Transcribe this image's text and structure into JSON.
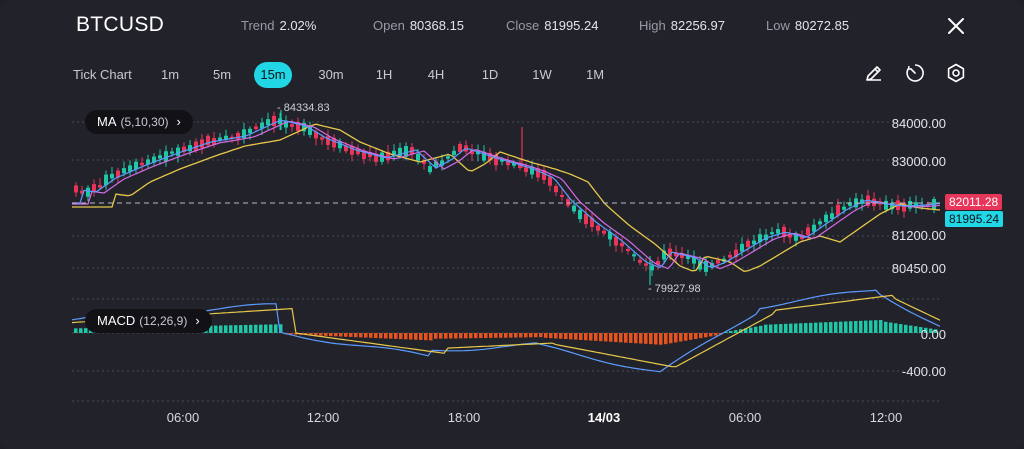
{
  "header": {
    "symbol": "BTCUSD",
    "trend_label": "Trend",
    "trend_value": "2.02%",
    "open_label": "Open",
    "open_value": "80368.15",
    "close_label": "Close",
    "close_value": "81995.24",
    "high_label": "High",
    "high_value": "82256.97",
    "low_label": "Low",
    "low_value": "80272.85",
    "close_icon": "close-icon"
  },
  "timeframes": {
    "tick": "Tick Chart",
    "items": [
      "1m",
      "5m",
      "15m",
      "30m",
      "1H",
      "4H",
      "1D",
      "1W",
      "1M"
    ],
    "active": "15m"
  },
  "tools": [
    "pencil-icon",
    "timer-icon",
    "settings-icon"
  ],
  "indicators": {
    "ma_label": "MA",
    "ma_params": "(5,10,30)",
    "macd_label": "MACD",
    "macd_params": "(12,26,9)"
  },
  "price_axis": [
    "84000.00",
    "83000.00",
    "81200.00",
    "80450.00"
  ],
  "price_tags": {
    "prev": "82011.28",
    "last": "81995.24"
  },
  "macd_axis": [
    "0.00",
    "-400.00"
  ],
  "annotations": {
    "high": "84334.83",
    "low": "79927.98"
  },
  "time_axis": [
    "06:00",
    "12:00",
    "18:00",
    "14/03",
    "06:00",
    "12:00"
  ],
  "colors": {
    "up": "#1fc7a6",
    "down": "#e8365a",
    "ma5": "#5c9bff",
    "ma10": "#d46ae6",
    "ma30": "#e6c84a",
    "accent": "#21d7e6",
    "macd_neg": "#e5531f"
  },
  "chart_data": {
    "type": "candlestick",
    "price_ylim": [
      79800,
      84600
    ],
    "series": [
      {
        "name": "MA",
        "params": "5,10,30"
      },
      {
        "name": "MACD",
        "params": "12,26,9"
      }
    ]
  }
}
